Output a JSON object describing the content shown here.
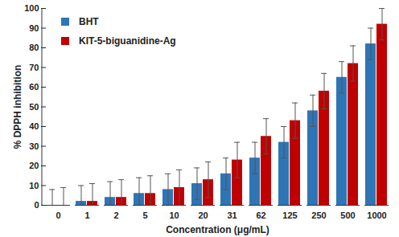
{
  "chart_data": {
    "type": "bar",
    "x_label": "Concentration (μg/mL)",
    "y_label": "% DPPH inhibition",
    "categories": [
      "0",
      "1",
      "2",
      "5",
      "10",
      "20",
      "31",
      "62",
      "125",
      "250",
      "500",
      "1000"
    ],
    "series": [
      {
        "name": "BHT",
        "color": "#2e75b6",
        "values": [
          0,
          2,
          4,
          6,
          8,
          11,
          16,
          24,
          32,
          48,
          65,
          82
        ],
        "errors": [
          8,
          8,
          8,
          8,
          8,
          8,
          8,
          8,
          8,
          8,
          8,
          8
        ]
      },
      {
        "name": "KIT-5-biguanidine-Ag",
        "color": "#c00000",
        "values": [
          0,
          2,
          4,
          6,
          9,
          13,
          23,
          35,
          43,
          58,
          72,
          92
        ],
        "errors": [
          9,
          9,
          9,
          9,
          9,
          9,
          9,
          9,
          9,
          9,
          9,
          8
        ]
      }
    ],
    "ylim": [
      0,
      100
    ],
    "yticks": [
      0,
      10,
      20,
      30,
      40,
      50,
      60,
      70,
      80,
      90,
      100
    ],
    "grid": false,
    "legend": "upper left"
  }
}
